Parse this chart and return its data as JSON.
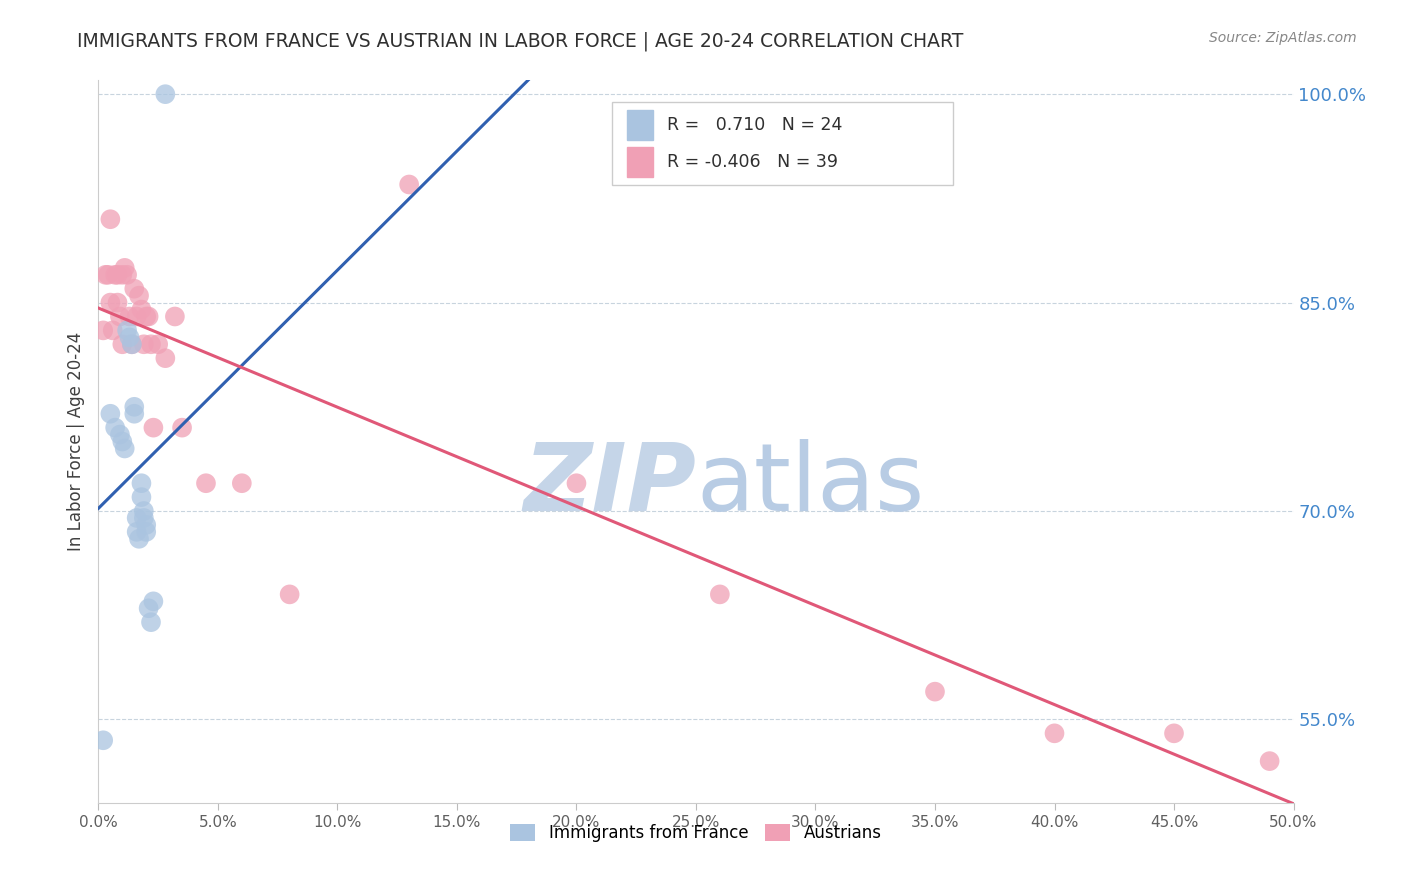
{
  "title": "IMMIGRANTS FROM FRANCE VS AUSTRIAN IN LABOR FORCE | AGE 20-24 CORRELATION CHART",
  "source": "Source: ZipAtlas.com",
  "ylabel": "In Labor Force | Age 20-24",
  "x_min": 0.0,
  "x_max": 0.5,
  "y_min": 0.49,
  "y_max": 1.01,
  "y_ticks": [
    0.55,
    0.7,
    0.85,
    1.0
  ],
  "x_ticks": [
    0.0,
    0.05,
    0.1,
    0.15,
    0.2,
    0.25,
    0.3,
    0.35,
    0.4,
    0.45,
    0.5
  ],
  "blue_color": "#aac4e0",
  "pink_color": "#f0a0b5",
  "blue_line_color": "#3060b0",
  "pink_line_color": "#e05878",
  "blue_label": "Immigrants from France",
  "pink_label": "Austrians",
  "R_blue": 0.71,
  "N_blue": 24,
  "R_pink": -0.406,
  "N_pink": 39,
  "blue_x": [
    0.002,
    0.005,
    0.007,
    0.009,
    0.01,
    0.011,
    0.012,
    0.013,
    0.014,
    0.015,
    0.015,
    0.016,
    0.016,
    0.017,
    0.018,
    0.018,
    0.019,
    0.019,
    0.02,
    0.02,
    0.021,
    0.022,
    0.023,
    0.028
  ],
  "blue_y": [
    0.535,
    0.77,
    0.76,
    0.755,
    0.75,
    0.745,
    0.83,
    0.825,
    0.82,
    0.775,
    0.77,
    0.695,
    0.685,
    0.68,
    0.72,
    0.71,
    0.7,
    0.695,
    0.69,
    0.685,
    0.63,
    0.62,
    0.635,
    1.0
  ],
  "pink_x": [
    0.002,
    0.003,
    0.004,
    0.005,
    0.005,
    0.006,
    0.007,
    0.008,
    0.008,
    0.009,
    0.01,
    0.01,
    0.011,
    0.012,
    0.013,
    0.014,
    0.015,
    0.016,
    0.017,
    0.018,
    0.019,
    0.02,
    0.021,
    0.022,
    0.023,
    0.025,
    0.028,
    0.032,
    0.035,
    0.045,
    0.06,
    0.08,
    0.13,
    0.2,
    0.26,
    0.35,
    0.4,
    0.45,
    0.49
  ],
  "pink_y": [
    0.83,
    0.87,
    0.87,
    0.85,
    0.91,
    0.83,
    0.87,
    0.87,
    0.85,
    0.84,
    0.87,
    0.82,
    0.875,
    0.87,
    0.84,
    0.82,
    0.86,
    0.84,
    0.855,
    0.845,
    0.82,
    0.84,
    0.84,
    0.82,
    0.76,
    0.82,
    0.81,
    0.84,
    0.76,
    0.72,
    0.72,
    0.64,
    0.935,
    0.72,
    0.64,
    0.57,
    0.54,
    0.54,
    0.52
  ],
  "watermark": "ZIPAtlas",
  "watermark_color": "#ccd8ea",
  "background_color": "#ffffff",
  "grid_color": "#c8d4de",
  "title_color": "#303030",
  "axis_label_color": "#404040",
  "tick_label_color_right": "#4488cc",
  "tick_label_color_bottom": "#606060",
  "source_color": "#888888"
}
